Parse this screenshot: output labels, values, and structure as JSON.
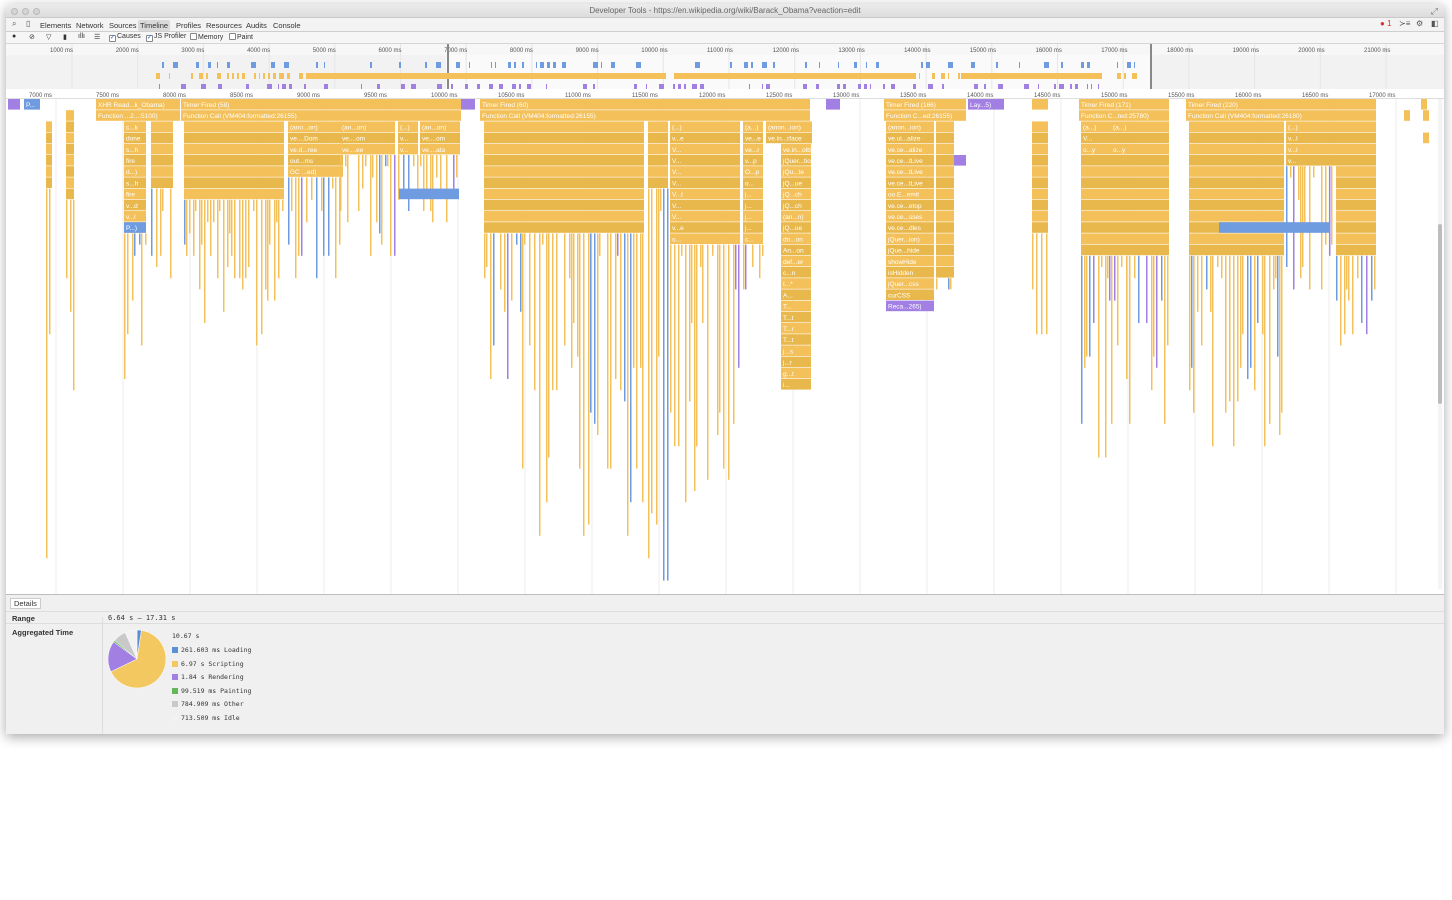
{
  "window": {
    "title": "Developer Tools - https://en.wikipedia.org/wiki/Barack_Obama?veaction=edit"
  },
  "tabs": [
    {
      "label": "Elements"
    },
    {
      "label": "Network"
    },
    {
      "label": "Sources"
    },
    {
      "label": "Timeline",
      "active": true
    },
    {
      "label": "Profiles"
    },
    {
      "label": "Resources"
    },
    {
      "label": "Audits"
    },
    {
      "label": "Console"
    }
  ],
  "error_count": "1",
  "toolbar": {
    "causes_label": "Causes",
    "causes_checked": true,
    "js_profiler_label": "JS Profiler",
    "js_profiler_checked": true,
    "memory_label": "Memory",
    "memory_checked": false,
    "paint_label": "Paint",
    "paint_checked": false
  },
  "overview_ticks": [
    "1000 ms",
    "2000 ms",
    "3000 ms",
    "4000 ms",
    "5000 ms",
    "6000 ms",
    "7000 ms",
    "8000 ms",
    "9000 ms",
    "10000 ms",
    "11000 ms",
    "12000 ms",
    "13000 ms",
    "14000 ms",
    "15000 ms",
    "16000 ms",
    "17000 ms",
    "18000 ms",
    "19000 ms",
    "20000 ms",
    "21000 ms"
  ],
  "flame_ticks": [
    "7000 ms",
    "7500 ms",
    "8000 ms",
    "8500 ms",
    "9000 ms",
    "9500 ms",
    "10000 ms",
    "10500 ms",
    "11000 ms",
    "11500 ms",
    "12000 ms",
    "12500 ms",
    "13000 ms",
    "13500 ms",
    "14000 ms",
    "14500 ms",
    "15000 ms",
    "15500 ms",
    "16000 ms",
    "16500 ms",
    "17000 ms"
  ],
  "flame_labels": {
    "top": [
      "P...",
      "XHR Read...k_Obama)",
      "Timer Fired (58)",
      "Timer Fired (60)",
      "Timer Fired (166)",
      "Lay...5)",
      "Timer Fired (171)",
      "Timer Fired (220)"
    ],
    "second": [
      "Function ...2...:5100)",
      "Function Call (VM404:formatted:26155)",
      "Function Call (VM404:formatted:26155)",
      "Function C...ed:26155)",
      "Function C...ted:25780)",
      "Function Call (VM404:formatted:26180)"
    ],
    "col_a": [
      "c...k",
      "done",
      "s...h",
      "fire",
      "d...)",
      "s...h",
      "fire",
      "v...d",
      "v...l",
      "P...)"
    ],
    "col_b": [
      "(ano...on)",
      "ve....Dom",
      "ve.d...ree",
      "out...ms",
      "GC ...ed)"
    ],
    "col_c": [
      "(an...on)",
      "ve....om",
      "ve....ee"
    ],
    "col_d": [
      "(...)",
      "v...",
      "v..."
    ],
    "col_e": [
      "(an...on)",
      "ve....om",
      "ve....ata"
    ],
    "col_f": [
      "(...)",
      "v...e",
      "V...",
      "V...",
      "V...",
      "V...",
      "V...t",
      "V...",
      "V...",
      "v...e",
      "o..."
    ],
    "col_g": [
      "(a...)",
      "ve...e",
      "ve...r",
      "v...p",
      "O...p",
      "o...",
      "j...",
      "j...",
      "j...",
      "j...",
      "c..."
    ],
    "col_h": [
      "(anon...ion)",
      "ve.in...rface",
      "ve.in...olbar",
      "jQuer...tion)",
      "jQu...te",
      "jQ...ue",
      "jQ...ch",
      "jQ...ch",
      "(an...n)",
      "jQ...ue",
      "do...on",
      "An...on",
      "def...er",
      "c...n",
      "t...*",
      "A...",
      "T...",
      "T...t",
      "T...r",
      "T...t",
      "j...s",
      "j...r",
      "g...t",
      "i..."
    ],
    "col_i": [
      "(anon...ion)",
      "ve.ui...alize",
      "ve.ce...alize",
      "ve.ce...tLive",
      "ve.ce...tLive",
      "ve.ce...tLive",
      "oo.E...emit",
      "ve.ce...etop",
      "ve.ce...sses",
      "ve.ce...dles",
      "jQuer...ion)",
      "jQue...hide",
      "showHide",
      "isHidden",
      "jQuer...css",
      "curCSS",
      "Reca...265)"
    ],
    "col_j": [
      "(a...)",
      "V...",
      "o...y"
    ],
    "col_k": [
      "(...)",
      "v...l",
      "v...l",
      "v..."
    ]
  },
  "details": {
    "tab": "Details",
    "range_label": "Range",
    "range_value": "6.64 s – 17.31 s",
    "agg_label": "Aggregated Time",
    "total": "10.67 s",
    "legend": [
      {
        "label": "261.603 ms Loading",
        "color": "#5b8fd6",
        "ms": 261.603
      },
      {
        "label": "6.97 s Scripting",
        "color": "#f3c860",
        "ms": 6970
      },
      {
        "label": "1.84 s Rendering",
        "color": "#a27fe3",
        "ms": 1840
      },
      {
        "label": "99.519 ms Painting",
        "color": "#65b85a",
        "ms": 99.519
      },
      {
        "label": "784.909 ms Other",
        "color": "#c9c9c9",
        "ms": 784.909
      },
      {
        "label": "713.509 ms Idle",
        "color": "#f2f2f2",
        "ms": 713.509
      }
    ]
  }
}
